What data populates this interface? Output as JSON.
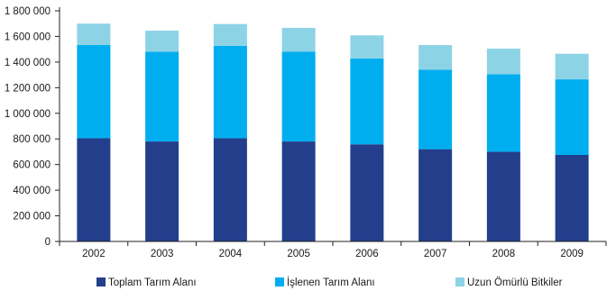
{
  "chart_data": {
    "type": "bar",
    "stacked": true,
    "categories": [
      "2002",
      "2003",
      "2004",
      "2005",
      "2006",
      "2007",
      "2008",
      "2009"
    ],
    "series": [
      {
        "name": "Toplam Tarım Alanı",
        "color": "#233e8b",
        "values": [
          805000,
          780000,
          805000,
          780000,
          758000,
          720000,
          700000,
          675000
        ]
      },
      {
        "name": "İşlenen Tarım Alanı",
        "color": "#00aeef",
        "values": [
          728000,
          700000,
          722000,
          702000,
          670000,
          620000,
          605000,
          590000
        ]
      },
      {
        "name": "Uzun Ömürlü Bitkiler",
        "color": "#8dd3e6",
        "values": [
          167000,
          165000,
          170000,
          185000,
          180000,
          193000,
          200000,
          200000
        ]
      }
    ],
    "y_ticks": [
      0,
      200000,
      400000,
      600000,
      800000,
      1000000,
      1200000,
      1400000,
      1600000,
      1800000
    ],
    "y_tick_labels": [
      "0",
      "200 000",
      "400 000",
      "600 000",
      "800 000",
      "1 000 000",
      "1 200 000",
      "1 400 000",
      "1 600 000",
      "1 800 000"
    ],
    "ylim": [
      0,
      1800000
    ],
    "xlabel": "",
    "ylabel": "",
    "title": "",
    "grid": false,
    "legend_position": "bottom"
  }
}
